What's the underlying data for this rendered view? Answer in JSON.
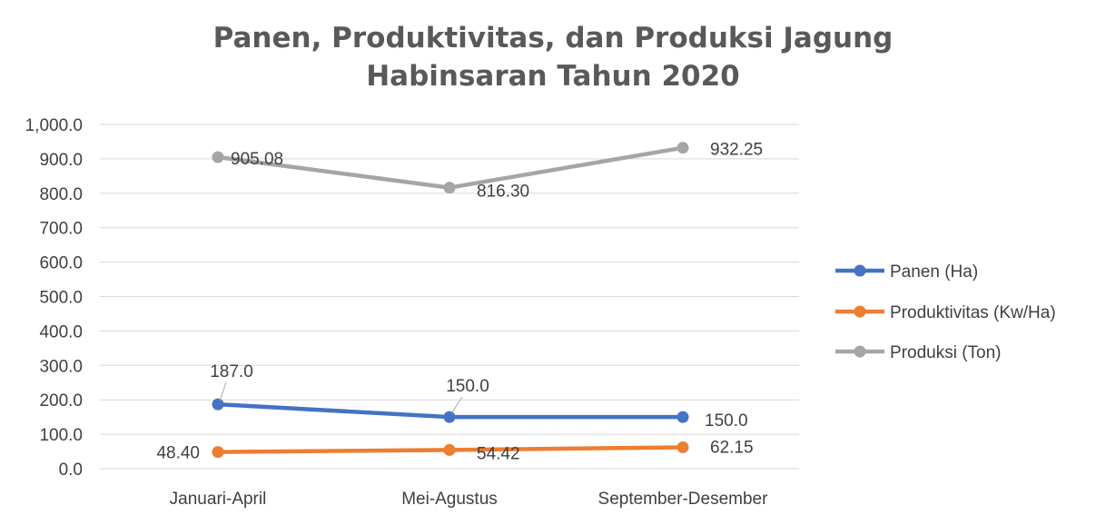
{
  "chart_data": {
    "type": "line",
    "title_line1": "Panen, Produktivitas, dan Produksi Jagung",
    "title_line2": "Habinsaran Tahun 2020",
    "categories": [
      "Januari-April",
      "Mei-Agustus",
      "September-Desember"
    ],
    "ylim": [
      0,
      1000
    ],
    "yticks": [
      {
        "value": 0,
        "label": "0.0"
      },
      {
        "value": 100,
        "label": "100.0"
      },
      {
        "value": 200,
        "label": "200.0"
      },
      {
        "value": 300,
        "label": "300.0"
      },
      {
        "value": 400,
        "label": "400.0"
      },
      {
        "value": 500,
        "label": "500.0"
      },
      {
        "value": 600,
        "label": "600.0"
      },
      {
        "value": 700,
        "label": "700.0"
      },
      {
        "value": 800,
        "label": "800.0"
      },
      {
        "value": 900,
        "label": "900.0"
      },
      {
        "value": 1000,
        "label": "1,000.0"
      }
    ],
    "grid": true,
    "legend_position": "right",
    "series": [
      {
        "name": "Panen (Ha)",
        "color": "#4472C4",
        "values": [
          187.0,
          150.0,
          150.0
        ],
        "labels": [
          "187.0",
          "150.0",
          "150.0"
        ]
      },
      {
        "name": "Produktivitas (Kw/Ha)",
        "color": "#ED7D31",
        "values": [
          48.4,
          54.42,
          62.15
        ],
        "labels": [
          "48.40",
          "54.42",
          "62.15"
        ]
      },
      {
        "name": "Produksi (Ton)",
        "color": "#A5A5A5",
        "values": [
          905.08,
          816.3,
          932.25
        ],
        "labels": [
          "905.08",
          "816.30",
          "932.25"
        ]
      }
    ]
  }
}
